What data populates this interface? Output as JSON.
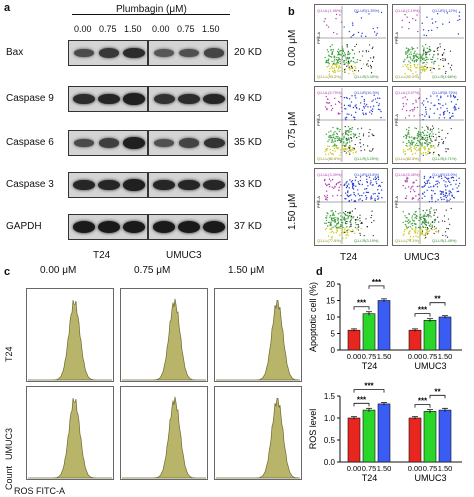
{
  "panel_a": {
    "letter": "a",
    "treatment_label": "Plumbagin (μM)",
    "doses": [
      "0.00",
      "0.75",
      "1.50"
    ],
    "proteins": [
      {
        "name": "Bax",
        "kd": "20 KD",
        "t24": [
          0.55,
          0.7,
          0.8
        ],
        "umuc3": [
          0.45,
          0.5,
          0.6
        ]
      },
      {
        "name": "Caspase 9",
        "kd": "49 KD",
        "t24": [
          0.8,
          0.85,
          0.9
        ],
        "umuc3": [
          0.75,
          0.8,
          0.85
        ]
      },
      {
        "name": "Caspase 6",
        "kd": "35 KD",
        "t24": [
          0.55,
          0.65,
          0.9
        ],
        "umuc3": [
          0.5,
          0.6,
          0.75
        ]
      },
      {
        "name": "Caspase 3",
        "kd": "33 KD",
        "t24": [
          0.85,
          0.85,
          0.9
        ],
        "umuc3": [
          0.85,
          0.85,
          0.85
        ]
      },
      {
        "name": "GAPDH",
        "kd": "37 KD",
        "t24": [
          0.95,
          0.95,
          0.95
        ],
        "umuc3": [
          0.95,
          0.95,
          0.95
        ]
      }
    ],
    "cell_lines": [
      "T24",
      "UMUC3"
    ]
  },
  "panel_b": {
    "letter": "b",
    "doses": [
      "0.00 μM",
      "0.75 μM",
      "1.50 μM"
    ],
    "cell_lines": [
      "T24",
      "UMUC3"
    ],
    "quadrant_labels": {
      "ul": [
        "Q1-UL(1.95%)",
        "Q1-UL(2.19%)",
        "Q1-UL(5.79%)",
        "Q1-UL(3.97%)",
        "Q1-UL(3.39%)",
        "Q1-UL(5.45%)"
      ],
      "ur": [
        "Q1-UR(1.39%)",
        "Q1-UR(1.12%)",
        "Q1-UR(10.3%)",
        "Q1-UR(8.79%)",
        "Q1-UR(13.8%)",
        "Q1-UR(13.9%)"
      ],
      "lr": [
        "Q1-LR(3.45%)",
        "Q1-LR(4.66%)",
        "Q1-LR(3.25%)",
        "Q1-LR(4.71%)",
        "Q1-LR(3.19%)",
        "Q1-LR(1.49%)"
      ],
      "ll": [
        "Q1-LL(93.2%)",
        "Q1-LL(92.0%)",
        "Q1-LL(80.6%)",
        "Q1-LL(82.5%)",
        "Q1-LL(77.6%)",
        "Q1-LL(79.1%)"
      ]
    },
    "y_axis": "PPE-A",
    "x_axis": "FITC-A"
  },
  "panel_c": {
    "letter": "c",
    "doses": [
      "0.00 μM",
      "0.75 μM",
      "1.50 μM"
    ],
    "rows": [
      "T24",
      "UMUC3"
    ],
    "y_axis": "Count",
    "x_axis": "ROS FITC-A",
    "peak_positions": [
      0.55,
      0.62,
      0.72
    ]
  },
  "panel_d": {
    "letter": "d",
    "colors": {
      "dose0": "#e8261f",
      "dose075": "#2bd62b",
      "dose150": "#3b5bf5"
    },
    "chart_data": [
      {
        "type": "bar",
        "title": "",
        "ylabel": "Apoptotic cell (%)",
        "categories": [
          "T24",
          "UMUC3"
        ],
        "dose_ticks": [
          "0.00",
          "0.75",
          "1.50"
        ],
        "series": [
          {
            "name": "0.00",
            "values": [
              6,
              6
            ]
          },
          {
            "name": "0.75",
            "values": [
              11,
              9
            ]
          },
          {
            "name": "1.50",
            "values": [
              15,
              10
            ]
          }
        ],
        "errors": [
          [
            0.4,
            0.4
          ],
          [
            0.6,
            0.5
          ],
          [
            0.5,
            0.4
          ]
        ],
        "significance": [
          {
            "group": 0,
            "from": 0,
            "to": 1,
            "label": "***"
          },
          {
            "group": 0,
            "from": 1,
            "to": 2,
            "label": "***"
          },
          {
            "group": 1,
            "from": 0,
            "to": 1,
            "label": "***"
          },
          {
            "group": 1,
            "from": 1,
            "to": 2,
            "label": "**"
          }
        ],
        "ylim": [
          0,
          20
        ],
        "yticks": [
          "0",
          "5",
          "10",
          "15",
          "20"
        ]
      },
      {
        "type": "bar",
        "title": "",
        "ylabel": "ROS level",
        "categories": [
          "T24",
          "UMUC3"
        ],
        "dose_ticks": [
          "0.00",
          "0.75",
          "1.50"
        ],
        "series": [
          {
            "name": "0.00",
            "values": [
              1.0,
              1.0
            ]
          },
          {
            "name": "0.75",
            "values": [
              1.18,
              1.15
            ]
          },
          {
            "name": "1.50",
            "values": [
              1.32,
              1.18
            ]
          }
        ],
        "errors": [
          [
            0.03,
            0.03
          ],
          [
            0.04,
            0.04
          ],
          [
            0.03,
            0.04
          ]
        ],
        "significance": [
          {
            "group": 0,
            "from": 0,
            "to": 1,
            "label": "***"
          },
          {
            "group": 0,
            "from": 0,
            "to": 2,
            "label": "***"
          },
          {
            "group": 1,
            "from": 0,
            "to": 1,
            "label": "***"
          },
          {
            "group": 1,
            "from": 1,
            "to": 2,
            "label": "**"
          }
        ],
        "ylim": [
          0,
          1.5
        ],
        "yticks": [
          "0.0",
          "0.5",
          "1.0",
          "1.5"
        ]
      }
    ]
  }
}
